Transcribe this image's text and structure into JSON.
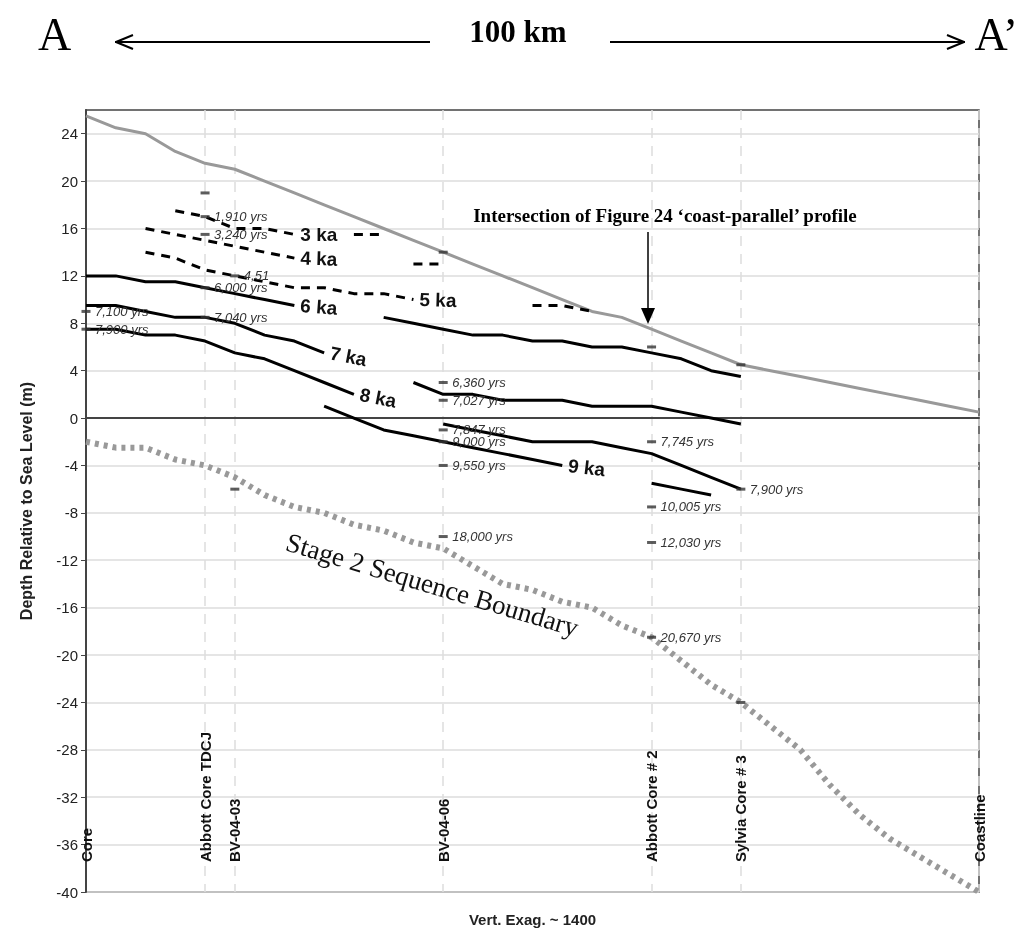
{
  "chart_data": {
    "type": "line",
    "title": "100 km",
    "xlabel": "Vert. Exag. ~ 1400",
    "ylabel": "Depth Relative to Sea Level (m)",
    "annotations": [
      "A",
      "A’",
      "Intersection of Figure 24 ‘coast-parallel’ profile",
      {
        "text": "7,100 yrs",
        "x": "Core",
        "y": 9
      },
      {
        "text": "7,900 yrs",
        "x": "Core",
        "y": 7.5
      },
      {
        "text": "1,910 yrs",
        "x": "Abbott Core TDCJ",
        "y": 17
      },
      {
        "text": "3,240 yrs",
        "x": "Abbott Core TDCJ",
        "y": 15.5
      },
      {
        "text": "6,000 yrs",
        "x": "Abbott Core TDCJ",
        "y": 11
      },
      {
        "text": "7,040 yrs",
        "x": "Abbott Core TDCJ",
        "y": 8.5
      },
      {
        "text": "4,51",
        "x": "BV-04-03",
        "y": 12
      },
      {
        "text": "6,360 yrs",
        "x": "BV-04-06",
        "y": 3
      },
      {
        "text": "7,027 yrs",
        "x": "BV-04-06",
        "y": 1.5
      },
      {
        "text": "7,847 yrs",
        "x": "BV-04-06",
        "y": -1
      },
      {
        "text": "9,000 yrs",
        "x": "BV-04-06",
        "y": -2
      },
      {
        "text": "9,550 yrs",
        "x": "BV-04-06",
        "y": -4
      },
      {
        "text": "18,000 yrs",
        "x": "BV-04-06",
        "y": -10
      },
      {
        "text": "7,745 yrs",
        "x": "Abbott Core # 2",
        "y": -2
      },
      {
        "text": "10,005 yrs",
        "x": "Abbott Core # 2",
        "y": -7.5
      },
      {
        "text": "12,030 yrs",
        "x": "Abbott Core # 2",
        "y": -10.5
      },
      {
        "text": "20,670 yrs",
        "x": "Abbott Core # 2",
        "y": -18.5
      },
      {
        "text": "7,900 yrs",
        "x": "Sylvia Core # 3",
        "y": -6
      }
    ],
    "categories": [
      "Core",
      null,
      null,
      null,
      "Abbott Core TDCJ",
      "BV-04-03",
      null,
      null,
      null,
      null,
      null,
      null,
      "BV-04-06",
      null,
      null,
      null,
      null,
      null,
      null,
      "Abbott Core # 2",
      null,
      null,
      "Sylvia Core # 3",
      null,
      null,
      null,
      null,
      null,
      null,
      null,
      "Coastline"
    ],
    "ylim": [
      -40,
      26
    ],
    "yticks": [
      -40,
      -36,
      -32,
      -28,
      -24,
      -20,
      -16,
      -12,
      -8,
      -4,
      0,
      4,
      8,
      12,
      16,
      20,
      24
    ],
    "grid": true,
    "series": [
      {
        "color": "#999999",
        "line_style": "solid",
        "values": [
          25.5,
          24.5,
          24,
          22.5,
          21.5,
          21,
          20,
          19,
          18,
          17,
          16,
          15,
          14,
          13,
          12,
          11,
          10,
          9,
          8.5,
          7.5,
          6.5,
          5.5,
          4.5,
          4,
          3.5,
          3,
          2.5,
          2,
          1.5,
          1,
          0.5
        ]
      },
      {
        "name": "Stage 2 Sequence Boundary",
        "color": "#999999",
        "line_style": "dotted",
        "values": [
          -2,
          -2.5,
          -2.5,
          -3.5,
          -4,
          -5,
          -6.5,
          -7.5,
          -8,
          -9,
          -9.5,
          -10.5,
          -11,
          -12.5,
          -14,
          -14.5,
          -15.5,
          -16,
          -17.5,
          -18.5,
          -20.5,
          -22.5,
          -24,
          -26,
          -28,
          -31,
          -33.5,
          -35.5,
          -37,
          -38.5,
          -40
        ]
      },
      {
        "name": "3 ka",
        "color": "#000000",
        "line_style": "dashed",
        "values": [
          null,
          null,
          null,
          17.5,
          17,
          16,
          16,
          15.5,
          null,
          15.5,
          15.5,
          null,
          null,
          null,
          null,
          null,
          null,
          null,
          null,
          null,
          null,
          null,
          null,
          null,
          null,
          null,
          null,
          null,
          null,
          null,
          null
        ]
      },
      {
        "name": "4 ka",
        "color": "#000000",
        "line_style": "dashed",
        "values": [
          null,
          null,
          16,
          15.5,
          15,
          14.5,
          14,
          13.5,
          null,
          null,
          null,
          13,
          13,
          null,
          null,
          null,
          null,
          null,
          null,
          null,
          null,
          null,
          null,
          null,
          null,
          null,
          null,
          null,
          null,
          null,
          null
        ]
      },
      {
        "name": "5 ka",
        "color": "#000000",
        "line_style": "dashed",
        "values": [
          null,
          null,
          14,
          13.5,
          12.5,
          12,
          11.5,
          11,
          11,
          10.5,
          10.5,
          10,
          null,
          null,
          null,
          9.5,
          9.5,
          9,
          null,
          null,
          null,
          null,
          null,
          null,
          null,
          null,
          null,
          null,
          null,
          null,
          null
        ]
      },
      {
        "name": "6 ka",
        "color": "#000000",
        "line_style": "solid",
        "values": [
          12,
          12,
          11.5,
          11.5,
          11,
          10.5,
          10,
          9.5,
          null,
          null,
          8.5,
          8,
          7.5,
          7,
          7,
          6.5,
          6.5,
          6,
          6,
          5.5,
          5,
          4,
          3.5,
          null,
          null,
          null,
          null,
          null,
          null,
          null,
          null
        ]
      },
      {
        "name": "7 ka",
        "color": "#000000",
        "line_style": "solid",
        "values": [
          9.5,
          9.5,
          9,
          8.5,
          8.5,
          8,
          7,
          6.5,
          5.5,
          null,
          null,
          3,
          2,
          2,
          1.5,
          1.5,
          1.5,
          1,
          1,
          1,
          0.5,
          0,
          -0.5,
          null,
          null,
          null,
          null,
          null,
          null,
          null,
          null
        ]
      },
      {
        "name": "8 ka",
        "color": "#000000",
        "line_style": "solid",
        "values": [
          7.5,
          7.5,
          7,
          7,
          6.5,
          5.5,
          5,
          4,
          3,
          2,
          null,
          null,
          -0.5,
          -1,
          -1.5,
          -2,
          -2,
          -2,
          -2.5,
          -3,
          -4,
          -5,
          -6,
          null,
          null,
          null,
          null,
          null,
          null,
          null,
          null
        ]
      },
      {
        "name": "9 ka",
        "color": "#000000",
        "line_style": "solid",
        "values": [
          null,
          null,
          null,
          null,
          null,
          null,
          null,
          null,
          1,
          0,
          -1,
          -1.5,
          -2,
          -2.5,
          -3,
          -3.5,
          -4,
          null,
          null,
          -5.5,
          -6,
          -6.5,
          null,
          null,
          null,
          null,
          null,
          null,
          null,
          null,
          null
        ]
      },
      {
        "type": "scatter",
        "marker": "square",
        "color": "#333333",
        "x": [
          "Core",
          "Core"
        ],
        "values": [
          9,
          7.5
        ]
      },
      {
        "type": "scatter",
        "marker": "square",
        "color": "#333333",
        "x": [
          "Abbott Core TDCJ",
          "Abbott Core TDCJ",
          "Abbott Core TDCJ",
          "Abbott Core TDCJ",
          "Abbott Core TDCJ"
        ],
        "values": [
          19,
          17,
          15.5,
          11,
          8.5
        ]
      },
      {
        "type": "scatter",
        "marker": "square",
        "color": "#333333",
        "x": [
          "BV-04-03",
          "BV-04-03"
        ],
        "values": [
          12,
          -6
        ]
      },
      {
        "type": "scatter",
        "marker": "square",
        "color": "#333333",
        "x": [
          "BV-04-06",
          "BV-04-06",
          "BV-04-06",
          "BV-04-06",
          "BV-04-06",
          "BV-04-06",
          "BV-04-06"
        ],
        "values": [
          14,
          3,
          1.5,
          -1,
          -2,
          -4,
          -10
        ]
      },
      {
        "type": "scatter",
        "marker": "square",
        "color": "#333333",
        "x": [
          "Abbott Core # 2",
          "Abbott Core # 2",
          "Abbott Core # 2",
          "Abbott Core # 2",
          "Abbott Core # 2"
        ],
        "values": [
          6,
          -2,
          -7.5,
          -10.5,
          -18.5
        ]
      },
      {
        "type": "scatter",
        "marker": "square",
        "color": "#333333",
        "x": [
          "Sylvia Core # 3",
          "Sylvia Core # 3",
          "Sylvia Core # 3"
        ],
        "values": [
          4.5,
          -6,
          -24
        ]
      }
    ]
  }
}
